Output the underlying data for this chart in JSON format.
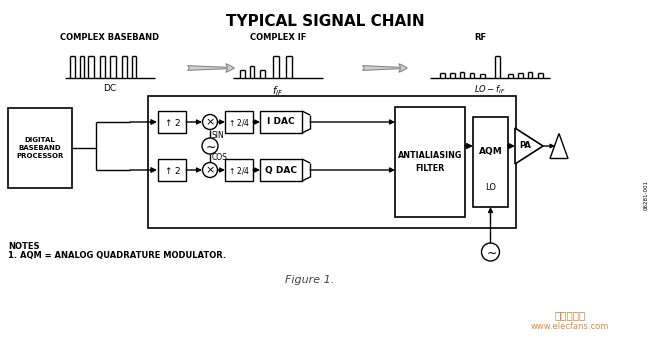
{
  "title": "TYPICAL SIGNAL CHAIN",
  "title_fontsize": 11,
  "bg_color": "#ffffff",
  "line_color": "#000000",
  "figure_caption": "Figure 1.",
  "notes_line1": "NOTES",
  "notes_line2": "1. AQM = ANALOG QUADRATURE MODULATOR.",
  "watermark_line1": "电子发烧友",
  "watermark_line2": "www.elecfans.com",
  "spectrum_labels": [
    "COMPLEX BASEBAND",
    "COMPLEX IF",
    "RF"
  ],
  "id_label": "06281-001"
}
